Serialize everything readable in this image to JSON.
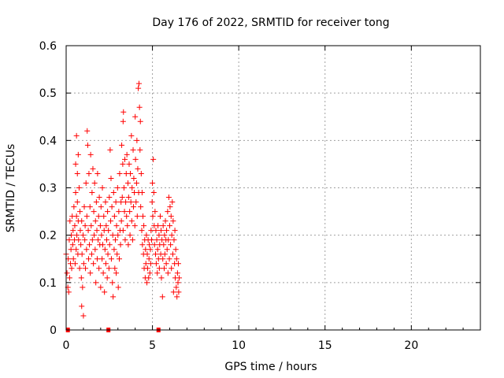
{
  "chart_data": {
    "type": "scatter",
    "title": "Day 176 of 2022, SRMTID for receiver tong",
    "xlabel": "GPS time / hours",
    "ylabel": "SRMTID / TECUs",
    "xlim": [
      0,
      24
    ],
    "ylim": [
      0,
      0.6
    ],
    "xticks": [
      0,
      5,
      10,
      15,
      20
    ],
    "xtick_labels": [
      "0",
      "5",
      "10",
      "15",
      "20"
    ],
    "yticks": [
      0,
      0.1,
      0.2,
      0.3,
      0.4,
      0.5,
      0.6
    ],
    "ytick_labels": [
      "0",
      "0.1",
      "0.2",
      "0.3",
      "0.4",
      "0.5",
      "0.6"
    ],
    "grid": true,
    "marker": "+",
    "color": "#ff0000",
    "zero_markers_x": [
      0.1,
      2.45,
      5.35
    ],
    "series": [
      {
        "name": "SRMTID",
        "points": [
          [
            0.0,
            0.16
          ],
          [
            0.05,
            0.12
          ],
          [
            0.1,
            0.09
          ],
          [
            0.12,
            0.15
          ],
          [
            0.15,
            0.08
          ],
          [
            0.18,
            0.19
          ],
          [
            0.2,
            0.11
          ],
          [
            0.22,
            0.23
          ],
          [
            0.25,
            0.14
          ],
          [
            0.28,
            0.17
          ],
          [
            0.3,
            0.2
          ],
          [
            0.32,
            0.13
          ],
          [
            0.35,
            0.24
          ],
          [
            0.38,
            0.18
          ],
          [
            0.4,
            0.21
          ],
          [
            0.42,
            0.15
          ],
          [
            0.45,
            0.26
          ],
          [
            0.48,
            0.19
          ],
          [
            0.5,
            0.22
          ],
          [
            0.52,
            0.14
          ],
          [
            0.55,
            0.29
          ],
          [
            0.55,
            0.35
          ],
          [
            0.58,
            0.17
          ],
          [
            0.6,
            0.41
          ],
          [
            0.6,
            0.24
          ],
          [
            0.62,
            0.2
          ],
          [
            0.65,
            0.33
          ],
          [
            0.65,
            0.27
          ],
          [
            0.68,
            0.16
          ],
          [
            0.7,
            0.37
          ],
          [
            0.7,
            0.23
          ],
          [
            0.72,
            0.19
          ],
          [
            0.75,
            0.3
          ],
          [
            0.78,
            0.13
          ],
          [
            0.8,
            0.25
          ],
          [
            0.82,
            0.21
          ],
          [
            0.85,
            0.18
          ],
          [
            0.88,
            0.11
          ],
          [
            0.9,
            0.23
          ],
          [
            0.9,
            0.05
          ],
          [
            0.92,
            0.16
          ],
          [
            0.95,
            0.09
          ],
          [
            0.98,
            0.2
          ],
          [
            1.0,
            0.03
          ],
          [
            1.02,
            0.14
          ],
          [
            1.05,
            0.26
          ],
          [
            1.08,
            0.19
          ],
          [
            1.1,
            0.22
          ],
          [
            1.12,
            0.13
          ],
          [
            1.15,
            0.31
          ],
          [
            1.18,
            0.17
          ],
          [
            1.2,
            0.24
          ],
          [
            1.22,
            0.42
          ],
          [
            1.25,
            0.39
          ],
          [
            1.28,
            0.21
          ],
          [
            1.3,
            0.15
          ],
          [
            1.32,
            0.33
          ],
          [
            1.35,
            0.18
          ],
          [
            1.38,
            0.26
          ],
          [
            1.4,
            0.12
          ],
          [
            1.42,
            0.37
          ],
          [
            1.45,
            0.22
          ],
          [
            1.48,
            0.16
          ],
          [
            1.5,
            0.29
          ],
          [
            1.52,
            0.19
          ],
          [
            1.55,
            0.34
          ],
          [
            1.58,
            0.14
          ],
          [
            1.6,
            0.25
          ],
          [
            1.62,
            0.2
          ],
          [
            1.65,
            0.31
          ],
          [
            1.68,
            0.17
          ],
          [
            1.7,
            0.23
          ],
          [
            1.72,
            0.1
          ],
          [
            1.75,
            0.27
          ],
          [
            1.78,
            0.21
          ],
          [
            1.8,
            0.15
          ],
          [
            1.82,
            0.33
          ],
          [
            1.85,
            0.19
          ],
          [
            1.88,
            0.24
          ],
          [
            1.9,
            0.13
          ],
          [
            1.92,
            0.28
          ],
          [
            1.95,
            0.18
          ],
          [
            1.98,
            0.22
          ],
          [
            2.0,
            0.09
          ],
          [
            2.02,
            0.26
          ],
          [
            2.05,
            0.2
          ],
          [
            2.08,
            0.15
          ],
          [
            2.1,
            0.3
          ],
          [
            2.12,
            0.18
          ],
          [
            2.15,
            0.12
          ],
          [
            2.18,
            0.24
          ],
          [
            2.2,
            0.21
          ],
          [
            2.22,
            0.08
          ],
          [
            2.25,
            0.17
          ],
          [
            2.28,
            0.27
          ],
          [
            2.3,
            0.14
          ],
          [
            2.32,
            0.22
          ],
          [
            2.35,
            0.19
          ],
          [
            2.38,
            0.11
          ],
          [
            2.4,
            0.25
          ],
          [
            2.42,
            0.16
          ],
          [
            2.45,
            0.21
          ],
          [
            2.48,
            0.13
          ],
          [
            2.5,
            0.28
          ],
          [
            2.52,
            0.18
          ],
          [
            2.55,
            0.38
          ],
          [
            2.58,
            0.23
          ],
          [
            2.6,
            0.32
          ],
          [
            2.62,
            0.15
          ],
          [
            2.65,
            0.26
          ],
          [
            2.68,
            0.1
          ],
          [
            2.7,
            0.2
          ],
          [
            2.72,
            0.07
          ],
          [
            2.75,
            0.29
          ],
          [
            2.78,
            0.17
          ],
          [
            2.8,
            0.24
          ],
          [
            2.82,
            0.13
          ],
          [
            2.85,
            0.19
          ],
          [
            2.88,
            0.27
          ],
          [
            2.9,
            0.12
          ],
          [
            2.92,
            0.22
          ],
          [
            2.95,
            0.16
          ],
          [
            2.98,
            0.3
          ],
          [
            3.0,
            0.2
          ],
          [
            3.02,
            0.09
          ],
          [
            3.05,
            0.25
          ],
          [
            3.08,
            0.15
          ],
          [
            3.1,
            0.33
          ],
          [
            3.12,
            0.21
          ],
          [
            3.15,
            0.18
          ],
          [
            3.18,
            0.27
          ],
          [
            3.2,
            0.23
          ],
          [
            3.22,
            0.39
          ],
          [
            3.25,
            0.28
          ],
          [
            3.28,
            0.35
          ],
          [
            3.3,
            0.44
          ],
          [
            3.3,
            0.21
          ],
          [
            3.32,
            0.46
          ],
          [
            3.35,
            0.3
          ],
          [
            3.38,
            0.25
          ],
          [
            3.4,
            0.36
          ],
          [
            3.42,
            0.19
          ],
          [
            3.45,
            0.27
          ],
          [
            3.48,
            0.33
          ],
          [
            3.5,
            0.24
          ],
          [
            3.52,
            0.37
          ],
          [
            3.55,
            0.22
          ],
          [
            3.58,
            0.31
          ],
          [
            3.6,
            0.18
          ],
          [
            3.62,
            0.28
          ],
          [
            3.65,
            0.35
          ],
          [
            3.68,
            0.25
          ],
          [
            3.7,
            0.2
          ],
          [
            3.72,
            0.33
          ],
          [
            3.75,
            0.27
          ],
          [
            3.78,
            0.41
          ],
          [
            3.8,
            0.23
          ],
          [
            3.82,
            0.3
          ],
          [
            3.85,
            0.19
          ],
          [
            3.88,
            0.38
          ],
          [
            3.9,
            0.26
          ],
          [
            3.92,
            0.32
          ],
          [
            3.95,
            0.29
          ],
          [
            3.98,
            0.22
          ],
          [
            4.0,
            0.45
          ],
          [
            4.02,
            0.36
          ],
          [
            4.05,
            0.27
          ],
          [
            4.08,
            0.31
          ],
          [
            4.1,
            0.4
          ],
          [
            4.12,
            0.24
          ],
          [
            4.15,
            0.34
          ],
          [
            4.18,
            0.51
          ],
          [
            4.2,
            0.29
          ],
          [
            4.22,
            0.52
          ],
          [
            4.25,
            0.47
          ],
          [
            4.28,
            0.38
          ],
          [
            4.3,
            0.44
          ],
          [
            4.32,
            0.26
          ],
          [
            4.35,
            0.33
          ],
          [
            4.38,
            0.21
          ],
          [
            4.4,
            0.29
          ],
          [
            4.42,
            0.18
          ],
          [
            4.45,
            0.24
          ],
          [
            4.48,
            0.16
          ],
          [
            4.5,
            0.22
          ],
          [
            4.52,
            0.13
          ],
          [
            4.55,
            0.19
          ],
          [
            4.58,
            0.11
          ],
          [
            4.6,
            0.17
          ],
          [
            4.62,
            0.14
          ],
          [
            4.65,
            0.2
          ],
          [
            4.68,
            0.1
          ],
          [
            4.7,
            0.16
          ],
          [
            4.72,
            0.13
          ],
          [
            4.75,
            0.19
          ],
          [
            4.78,
            0.11
          ],
          [
            4.8,
            0.15
          ],
          [
            4.82,
            0.18
          ],
          [
            4.85,
            0.12
          ],
          [
            4.88,
            0.17
          ],
          [
            4.9,
            0.14
          ],
          [
            4.92,
            0.21
          ],
          [
            4.95,
            0.19
          ],
          [
            4.98,
            0.27
          ],
          [
            5.0,
            0.31
          ],
          [
            5.02,
            0.24
          ],
          [
            5.05,
            0.36
          ],
          [
            5.08,
            0.29
          ],
          [
            5.1,
            0.22
          ],
          [
            5.12,
            0.18
          ],
          [
            5.15,
            0.25
          ],
          [
            5.18,
            0.16
          ],
          [
            5.2,
            0.21
          ],
          [
            5.22,
            0.14
          ],
          [
            5.25,
            0.19
          ],
          [
            5.28,
            0.12
          ],
          [
            5.3,
            0.17
          ],
          [
            5.32,
            0.22
          ],
          [
            5.35,
            0.15
          ],
          [
            5.38,
            0.2
          ],
          [
            5.4,
            0.13
          ],
          [
            5.42,
            0.18
          ],
          [
            5.45,
            0.24
          ],
          [
            5.48,
            0.16
          ],
          [
            5.5,
            0.21
          ],
          [
            5.52,
            0.11
          ],
          [
            5.55,
            0.19
          ],
          [
            5.58,
            0.07
          ],
          [
            5.6,
            0.15
          ],
          [
            5.62,
            0.22
          ],
          [
            5.65,
            0.18
          ],
          [
            5.68,
            0.13
          ],
          [
            5.7,
            0.2
          ],
          [
            5.72,
            0.16
          ],
          [
            5.75,
            0.23
          ],
          [
            5.78,
            0.19
          ],
          [
            5.8,
            0.14
          ],
          [
            5.82,
            0.21
          ],
          [
            5.85,
            0.17
          ],
          [
            5.88,
            0.25
          ],
          [
            5.9,
            0.12
          ],
          [
            5.92,
            0.19
          ],
          [
            5.95,
            0.28
          ],
          [
            5.98,
            0.15
          ],
          [
            6.0,
            0.22
          ],
          [
            6.02,
            0.26
          ],
          [
            6.05,
            0.18
          ],
          [
            6.08,
            0.24
          ],
          [
            6.1,
            0.13
          ],
          [
            6.12,
            0.2
          ],
          [
            6.15,
            0.27
          ],
          [
            6.18,
            0.16
          ],
          [
            6.2,
            0.23
          ],
          [
            6.22,
            0.08
          ],
          [
            6.25,
            0.19
          ],
          [
            6.28,
            0.14
          ],
          [
            6.3,
            0.21
          ],
          [
            6.32,
            0.11
          ],
          [
            6.35,
            0.17
          ],
          [
            6.38,
            0.09
          ],
          [
            6.4,
            0.15
          ],
          [
            6.42,
            0.07
          ],
          [
            6.45,
            0.12
          ],
          [
            6.48,
            0.1
          ],
          [
            6.5,
            0.14
          ],
          [
            6.52,
            0.08
          ],
          [
            6.55,
            0.11
          ]
        ]
      }
    ]
  }
}
